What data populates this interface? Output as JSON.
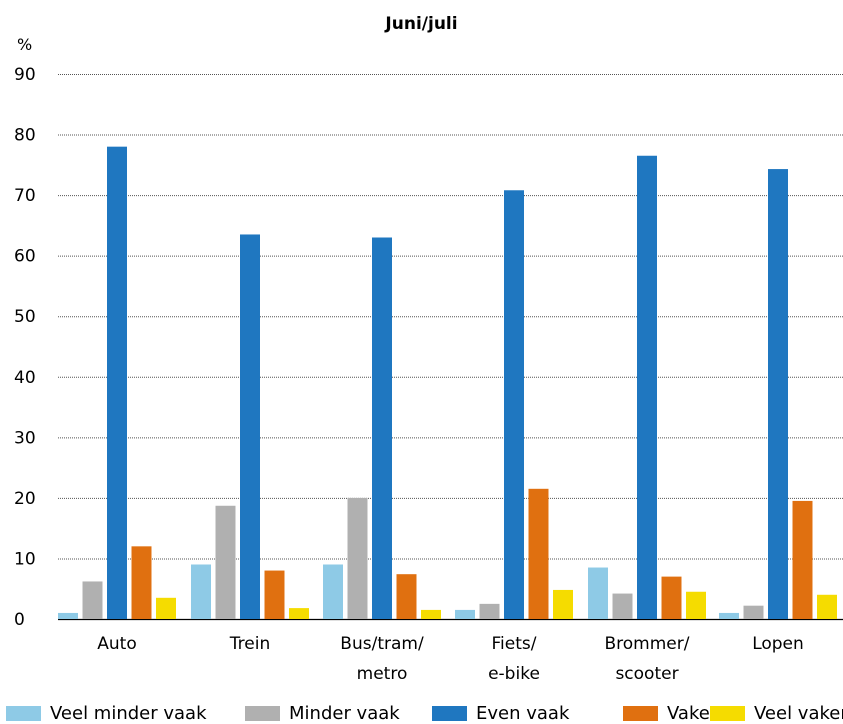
{
  "chart_data": {
    "type": "bar",
    "title": "Juni/juli",
    "ylabel": "%",
    "ylim": [
      0,
      90
    ],
    "yticks": [
      "0",
      "10",
      "20",
      "30",
      "40",
      "50",
      "60",
      "70",
      "80",
      "90"
    ],
    "grid": true,
    "legend_position": "bottom",
    "categories": [
      [
        "Auto"
      ],
      [
        "Trein"
      ],
      [
        "Bus/tram/",
        "metro"
      ],
      [
        "Fiets/",
        "e-bike"
      ],
      [
        "Brommer/",
        "scooter"
      ],
      [
        "Lopen"
      ]
    ],
    "series": [
      {
        "name": "Veel minder vaak",
        "color": "#8ecae6",
        "values": [
          1,
          9,
          9,
          1.5,
          8.5,
          1
        ]
      },
      {
        "name": "Minder vaak",
        "color": "#b0b0b0",
        "values": [
          6.2,
          18.7,
          20,
          2.5,
          4.2,
          2.2
        ]
      },
      {
        "name": "Even vaak",
        "color": "#1f77c0",
        "values": [
          78,
          63.5,
          63,
          70.8,
          76.5,
          74.3
        ]
      },
      {
        "name": "Vaker",
        "color": "#e07010",
        "values": [
          12,
          8,
          7.4,
          21.5,
          7,
          19.5
        ]
      },
      {
        "name": "Veel vaker",
        "color": "#f5dc00",
        "values": [
          3.5,
          1.8,
          1.5,
          4.8,
          4.5,
          4
        ]
      }
    ]
  }
}
